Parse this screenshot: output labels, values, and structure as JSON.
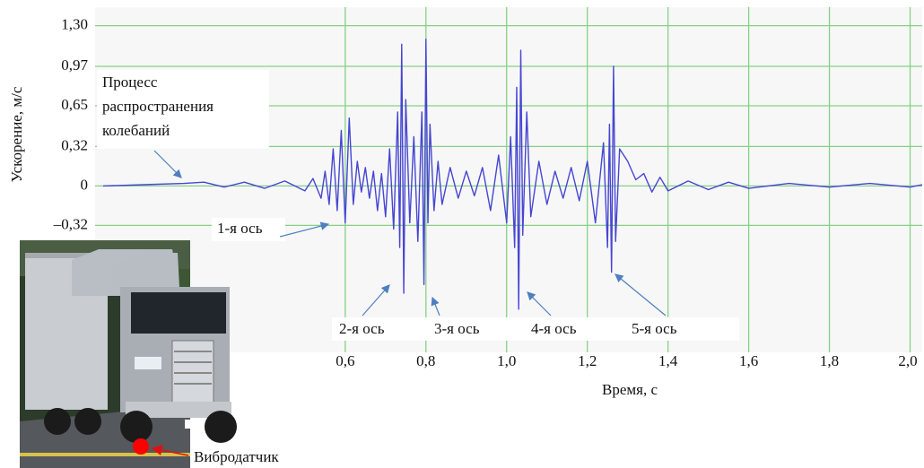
{
  "chart_data": {
    "type": "line",
    "y_label": "Ускорение, м/с",
    "x_label": "Время, с",
    "color": "#4646d2",
    "grid": true,
    "xlim": [
      -0.02,
      2.03
    ],
    "ylim": [
      -1.35,
      1.45
    ],
    "xticks": [
      {
        "value": 0.6,
        "label": "0,6"
      },
      {
        "value": 0.8,
        "label": "0,8"
      },
      {
        "value": 1.0,
        "label": "1,0"
      },
      {
        "value": 1.2,
        "label": "1,2"
      },
      {
        "value": 1.4,
        "label": "1,4"
      },
      {
        "value": 1.6,
        "label": "1,6"
      },
      {
        "value": 1.8,
        "label": "1,8"
      },
      {
        "value": 2.0,
        "label": "2,0"
      }
    ],
    "yticks": [
      {
        "value": 1.3,
        "label": "1,30"
      },
      {
        "value": 0.97,
        "label": "0,97"
      },
      {
        "value": 0.65,
        "label": "0,65"
      },
      {
        "value": 0.32,
        "label": "0,32"
      },
      0,
      {
        "value": -0.32,
        "label": "–0,32"
      }
    ],
    "x": [
      0,
      0.1,
      0.2,
      0.25,
      0.3,
      0.35,
      0.4,
      0.45,
      0.5,
      0.52,
      0.54,
      0.55,
      0.56,
      0.57,
      0.58,
      0.59,
      0.6,
      0.61,
      0.62,
      0.63,
      0.64,
      0.65,
      0.66,
      0.67,
      0.68,
      0.69,
      0.7,
      0.71,
      0.72,
      0.73,
      0.735,
      0.74,
      0.745,
      0.75,
      0.76,
      0.77,
      0.78,
      0.79,
      0.795,
      0.8,
      0.805,
      0.81,
      0.82,
      0.83,
      0.84,
      0.86,
      0.88,
      0.9,
      0.92,
      0.94,
      0.96,
      0.98,
      1.0,
      1.01,
      1.02,
      1.025,
      1.03,
      1.035,
      1.04,
      1.05,
      1.06,
      1.08,
      1.1,
      1.12,
      1.14,
      1.16,
      1.18,
      1.2,
      1.22,
      1.24,
      1.25,
      1.255,
      1.26,
      1.265,
      1.27,
      1.28,
      1.3,
      1.32,
      1.34,
      1.36,
      1.38,
      1.4,
      1.45,
      1.5,
      1.55,
      1.6,
      1.7,
      1.8,
      1.9,
      2.0,
      2.03
    ],
    "values": [
      0,
      0.01,
      0.02,
      0.03,
      -0.01,
      0.03,
      -0.02,
      0.04,
      -0.04,
      0.06,
      -0.1,
      0.12,
      -0.15,
      0.3,
      -0.2,
      0.45,
      -0.3,
      0.55,
      -0.15,
      0.2,
      -0.05,
      0.15,
      -0.1,
      0.12,
      -0.2,
      0.1,
      -0.25,
      0.3,
      -0.35,
      0.6,
      -0.5,
      1.15,
      -0.87,
      0.7,
      -0.3,
      0.4,
      -0.45,
      0.6,
      -0.8,
      1.19,
      -0.3,
      0.5,
      -0.2,
      0.2,
      -0.15,
      0.15,
      -0.1,
      0.12,
      -0.08,
      0.15,
      -0.2,
      0.25,
      -0.3,
      0.4,
      -0.5,
      0.8,
      -1.0,
      1.1,
      -0.4,
      0.6,
      -0.25,
      0.2,
      -0.15,
      0.12,
      -0.1,
      0.15,
      -0.12,
      0.2,
      -0.3,
      0.35,
      -0.5,
      0.5,
      -0.7,
      0.97,
      -0.45,
      0.3,
      0.2,
      0.05,
      0.1,
      -0.05,
      0.07,
      -0.04,
      0.04,
      -0.03,
      0.03,
      -0.02,
      0.02,
      -0.01,
      0.02,
      -0.01,
      0.01
    ],
    "annotations": [
      {
        "lines": [
          "Процесс",
          "распространения",
          "колебаний"
        ]
      },
      {
        "text": "1-я ось"
      },
      {
        "text": "2-я ось"
      },
      {
        "text": "3-я ось"
      },
      {
        "text": "4-я ось"
      },
      {
        "text": "5-я  ось"
      },
      {
        "text": "Вибродатчик"
      }
    ]
  }
}
